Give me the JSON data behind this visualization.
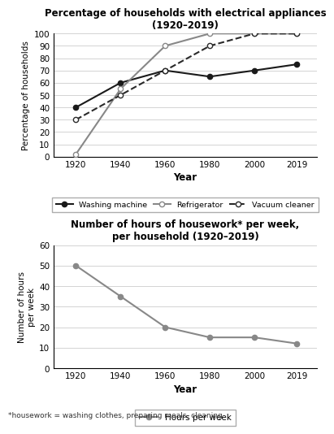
{
  "years": [
    1920,
    1940,
    1960,
    1980,
    2000,
    2019
  ],
  "washing_machine": [
    40,
    60,
    70,
    65,
    70,
    75
  ],
  "refrigerator": [
    2,
    55,
    90,
    100,
    100,
    100
  ],
  "vacuum_cleaner": [
    30,
    50,
    70,
    90,
    100,
    100
  ],
  "hours_per_week": [
    50,
    35,
    20,
    15,
    15,
    12
  ],
  "title1": "Percentage of households with electrical appliances\n(1920–2019)",
  "title2": "Number of hours of housework* per week,\nper household (1920–2019)",
  "ylabel1": "Percentage of households",
  "ylabel2": "Number of hours\nper week",
  "xlabel": "Year",
  "footnote": "*housework = washing clothes, preparing meals, cleaning",
  "ylim1": [
    0,
    100
  ],
  "ylim2": [
    0,
    60
  ],
  "yticks1": [
    0,
    10,
    20,
    30,
    40,
    50,
    60,
    70,
    80,
    90,
    100
  ],
  "yticks2": [
    0,
    10,
    20,
    30,
    40,
    50,
    60
  ],
  "line_color_wm": "#1a1a1a",
  "line_color_ref": "#888888",
  "line_color_vc": "#2a2a2a",
  "line_color_hw": "#888888",
  "bg_color": "#ffffff"
}
